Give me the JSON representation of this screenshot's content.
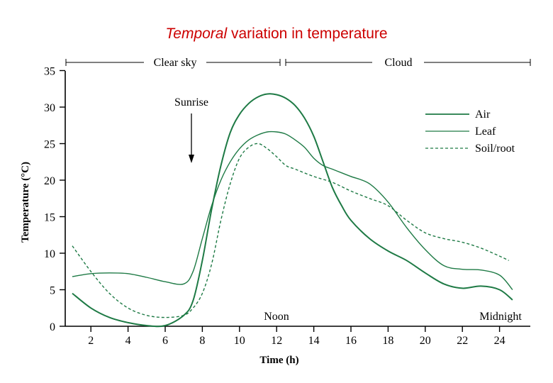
{
  "title": {
    "emphasis": "Temporal",
    "rest": " variation in temperature"
  },
  "annotations": {
    "clear_sky": "Clear sky",
    "cloud": "Cloud",
    "sunrise": "Sunrise",
    "noon": "Noon",
    "midnight": "Midnight"
  },
  "colors": {
    "title": "#cc0000",
    "series": "#1e7a45"
  },
  "chart_data": {
    "type": "line",
    "xlabel": "Time (h)",
    "ylabel": "Temperature (°C)",
    "xlim": [
      0.8,
      25
    ],
    "ylim": [
      0,
      35
    ],
    "xticks": [
      2,
      4,
      6,
      8,
      10,
      12,
      14,
      16,
      18,
      20,
      22,
      24
    ],
    "yticks": [
      0,
      5,
      10,
      15,
      20,
      25,
      30,
      35
    ],
    "legend_position": "right",
    "grid": false,
    "series": [
      {
        "name": "Air",
        "style": "solid",
        "x": [
          1,
          2,
          3,
          4,
          5,
          6,
          7,
          7.5,
          8,
          8.5,
          9,
          9.5,
          10,
          10.5,
          11,
          11.5,
          12,
          12.5,
          13,
          13.5,
          14,
          14.5,
          15,
          15.5,
          16,
          17,
          18,
          19,
          20,
          21,
          22,
          23,
          24,
          24.7
        ],
        "y": [
          4.5,
          2.5,
          1.2,
          0.5,
          0.1,
          0.1,
          1.5,
          3.5,
          9,
          16,
          22,
          26.5,
          29,
          30.5,
          31.4,
          31.8,
          31.7,
          31.2,
          30.2,
          28.5,
          26,
          22.5,
          19,
          16.5,
          14.5,
          12,
          10.3,
          9,
          7.3,
          5.8,
          5.2,
          5.5,
          5.0,
          3.6
        ]
      },
      {
        "name": "Leaf",
        "style": "solid",
        "x": [
          1,
          2,
          3,
          4,
          5,
          6,
          7,
          7.5,
          8,
          8.5,
          9,
          9.5,
          10,
          10.5,
          11,
          11.5,
          12,
          12.5,
          13,
          13.5,
          14,
          14.5,
          15,
          15.5,
          16,
          17,
          18,
          19,
          20,
          21,
          22,
          23,
          24,
          24.7
        ],
        "y": [
          6.8,
          7.2,
          7.3,
          7.2,
          6.7,
          6.1,
          5.8,
          7.5,
          12,
          16.5,
          20,
          22.5,
          24.3,
          25.5,
          26.2,
          26.6,
          26.6,
          26.3,
          25.5,
          24.5,
          23,
          22,
          21.5,
          21,
          20.5,
          19.5,
          17,
          13.5,
          10.5,
          8.3,
          7.8,
          7.7,
          7.0,
          5.0
        ]
      },
      {
        "name": "Soil/root",
        "style": "dashed",
        "x": [
          1,
          2,
          3,
          4,
          5,
          6,
          7,
          7.5,
          8,
          8.5,
          9,
          9.5,
          10,
          10.5,
          11,
          11.5,
          12,
          12.5,
          13,
          14,
          15,
          16,
          17,
          18,
          19,
          20,
          21,
          22,
          23,
          24,
          24.5
        ],
        "y": [
          11,
          7.5,
          4.5,
          2.5,
          1.5,
          1.2,
          1.5,
          2.5,
          4.5,
          8.5,
          14.5,
          19.5,
          23,
          24.5,
          25,
          24.3,
          23.2,
          22,
          21.5,
          20.5,
          19.7,
          18.5,
          17.5,
          16.5,
          14.5,
          12.8,
          12,
          11.5,
          10.7,
          9.6,
          9.0
        ]
      }
    ],
    "legend": [
      "Air",
      "Leaf",
      "Soil/root"
    ]
  }
}
